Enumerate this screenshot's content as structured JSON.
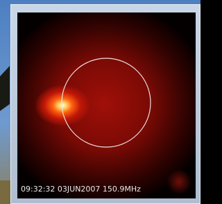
{
  "overlay": {
    "caption": "09:32:32 03JUN2007 150.9MHz"
  }
}
